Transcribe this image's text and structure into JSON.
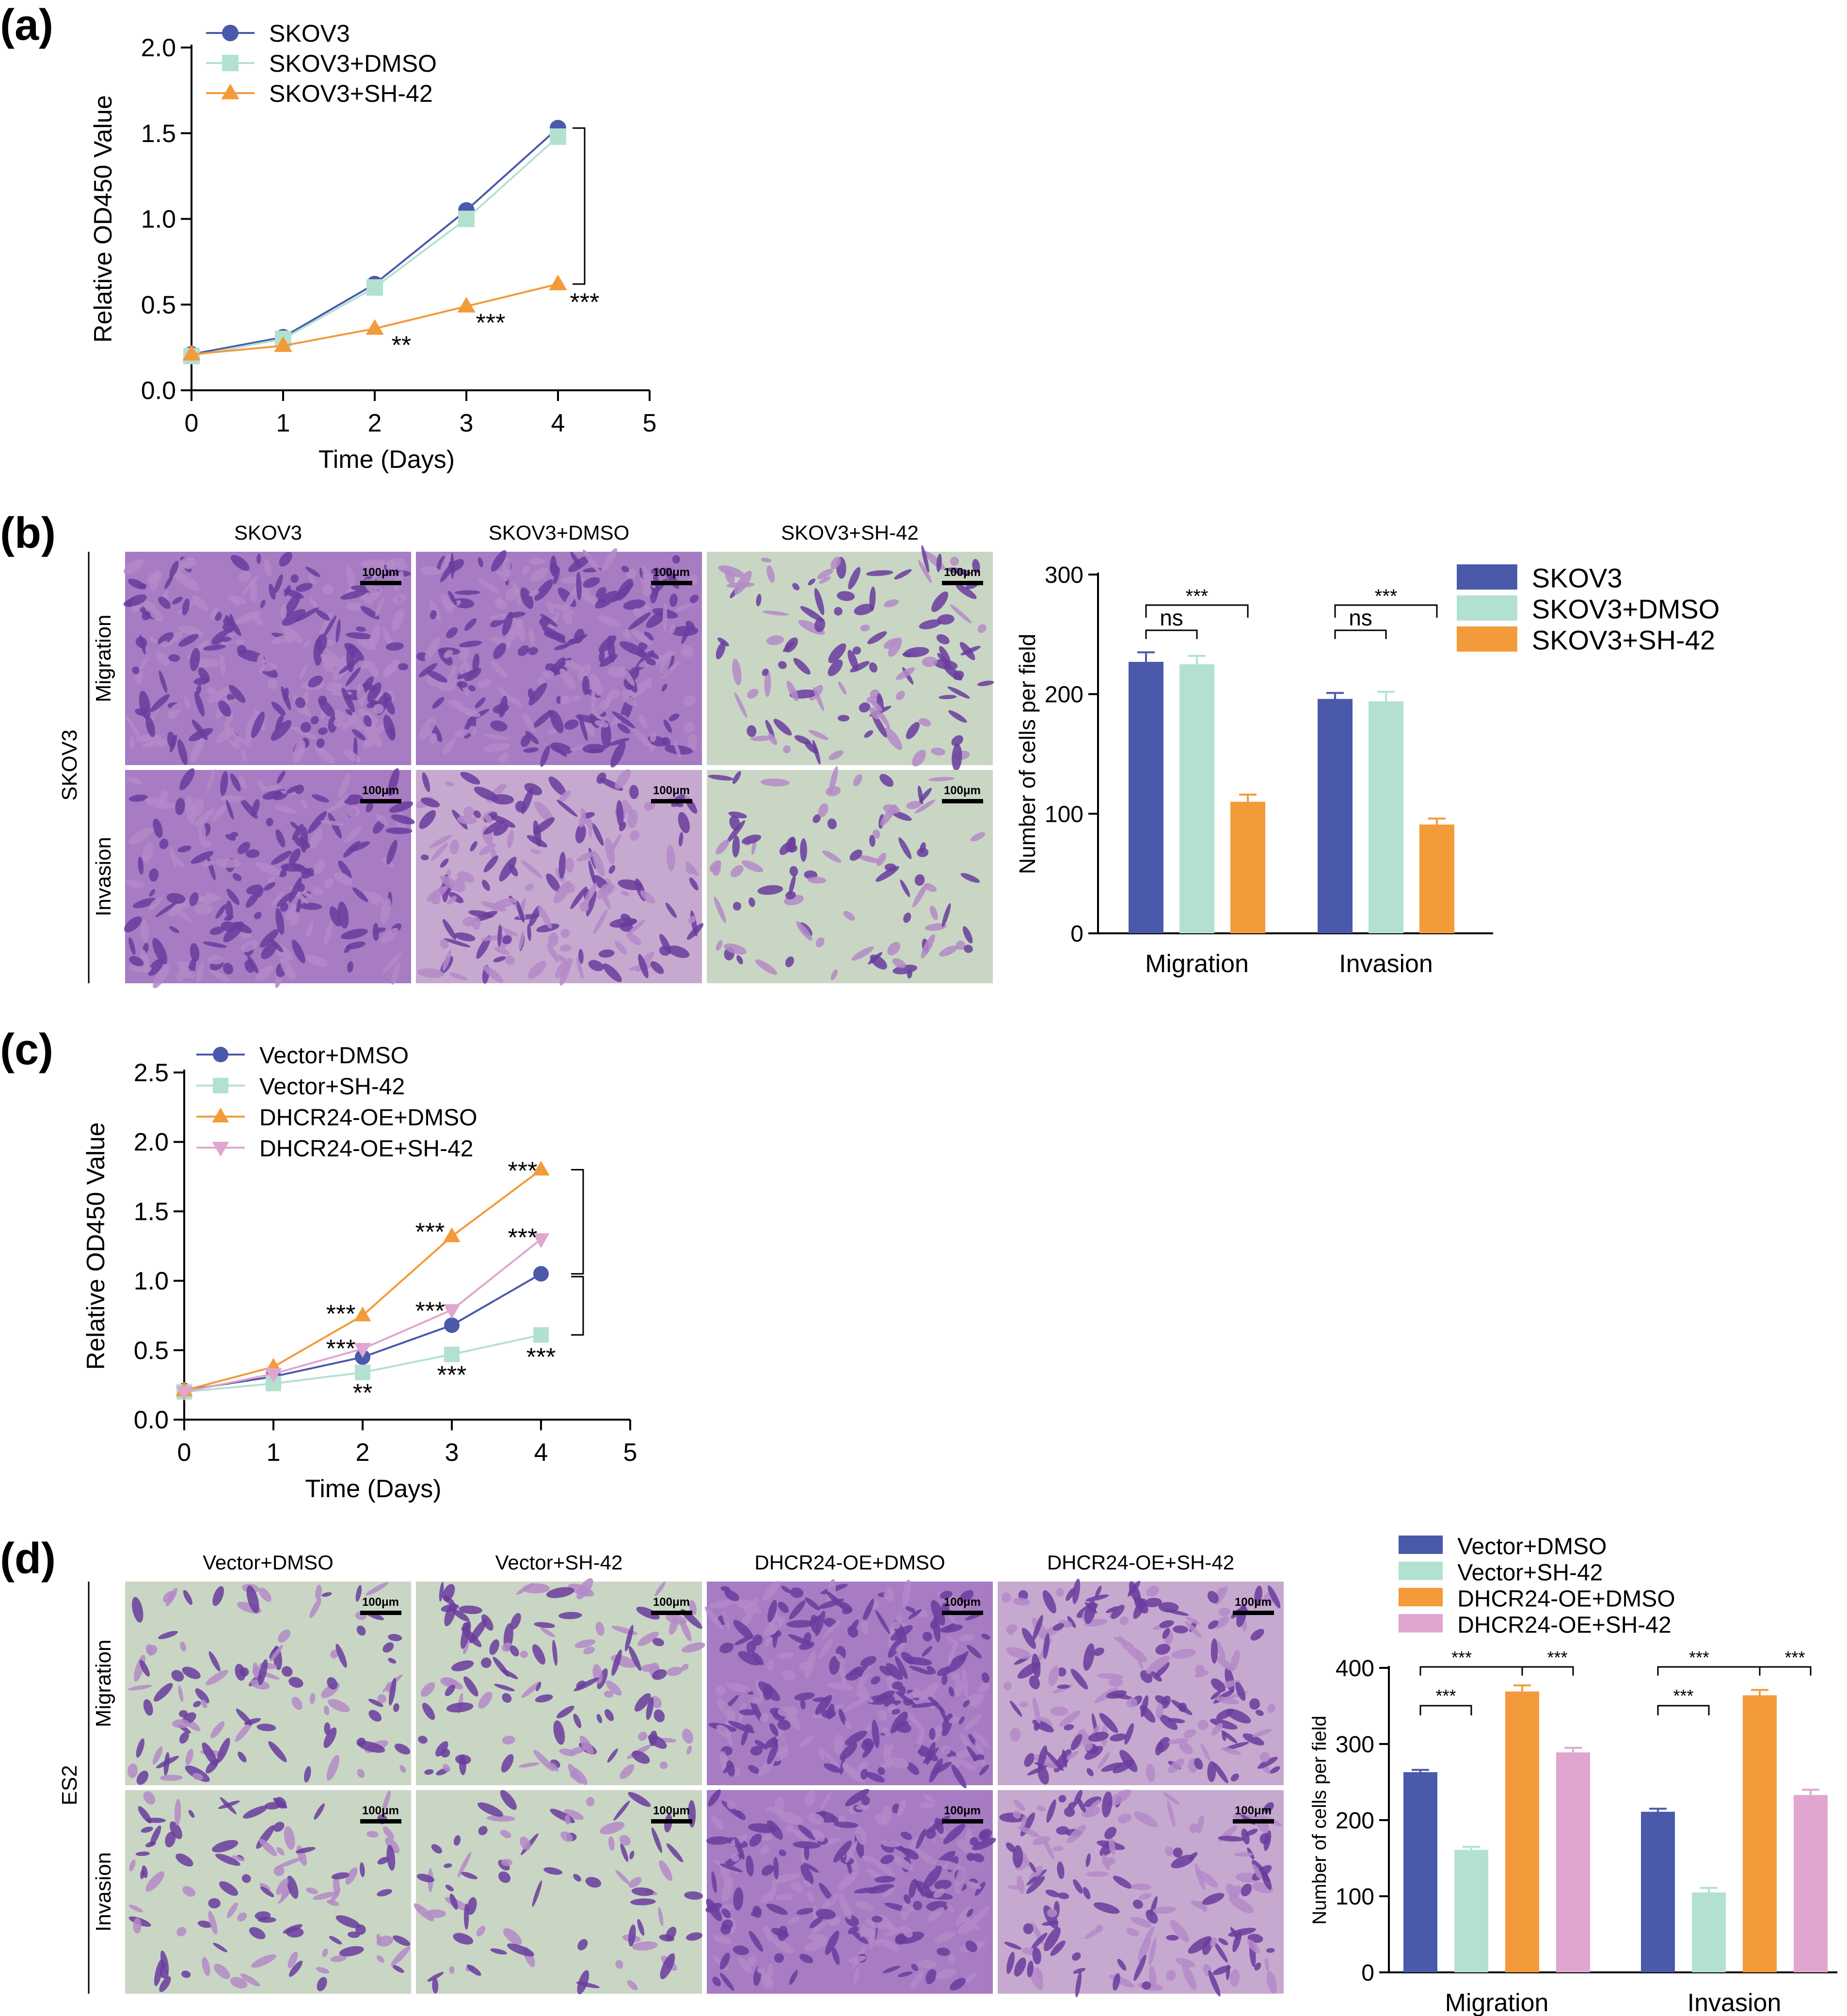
{
  "panels": {
    "a": "(a)",
    "b": "(b)",
    "c": "(c)",
    "d": "(d)"
  },
  "colors": {
    "blue": "#4A59AA",
    "mint": "#B3E1D0",
    "orange": "#F39A3A",
    "pink": "#E0A6CF",
    "stain_dark": "#6A3C9E",
    "stain_light": "#B489C8",
    "stain_bg_sparse": "#C9D6C4",
    "stain_bg_dense": "#A77CC3"
  },
  "micrograph_b": {
    "row_header": "SKOV3",
    "col_labels": [
      "SKOV3",
      "SKOV3+DMSO",
      "SKOV3+SH-42"
    ],
    "row_labels": [
      "Migration",
      "Invasion"
    ],
    "scale_bar": "100μm"
  },
  "micrograph_d": {
    "row_header": "ES2",
    "col_labels": [
      "Vector+DMSO",
      "Vector+SH-42",
      "DHCR24-OE+DMSO",
      "DHCR24-OE+SH-42"
    ],
    "row_labels": [
      "Migration",
      "Invasion"
    ],
    "scale_bar": "100μm"
  },
  "chart_data": [
    {
      "id": "a",
      "type": "line",
      "xlabel": "Time (Days)",
      "ylabel": "Relative OD450 Value",
      "xlim": [
        0,
        5
      ],
      "ylim": [
        0,
        2.0
      ],
      "xticks": [
        "0",
        "1",
        "2",
        "3",
        "4",
        "5"
      ],
      "yticks": [
        "0.0",
        "0.5",
        "1.0",
        "1.5",
        "2.0"
      ],
      "x": [
        0,
        1,
        2,
        3,
        4
      ],
      "series": [
        {
          "name": "SKOV3",
          "marker": "circle",
          "color": "#4A59AA",
          "values": [
            0.21,
            0.31,
            0.62,
            1.05,
            1.53
          ]
        },
        {
          "name": "SKOV3+DMSO",
          "marker": "square",
          "color": "#B3E1D0",
          "values": [
            0.2,
            0.3,
            0.6,
            1.0,
            1.48
          ]
        },
        {
          "name": "SKOV3+SH-42",
          "marker": "triangle-up",
          "color": "#F39A3A",
          "values": [
            0.21,
            0.26,
            0.36,
            0.49,
            0.62
          ]
        }
      ],
      "annotations": [
        {
          "text": "**",
          "x": 2,
          "y": 0.27
        },
        {
          "text": "***",
          "x": 3,
          "y": 0.4
        },
        {
          "text": "***",
          "x": 4,
          "y": 0.52
        }
      ],
      "legend": "top-left"
    },
    {
      "id": "b",
      "type": "bar",
      "ylabel": "Number of cells per field",
      "ylim": [
        0,
        300
      ],
      "yticks": [
        "0",
        "100",
        "200",
        "300"
      ],
      "categories": [
        "Migration",
        "Invasion"
      ],
      "series": [
        {
          "name": "SKOV3",
          "color": "#4A59AA",
          "values": [
            227,
            196
          ],
          "errors": [
            8,
            5
          ]
        },
        {
          "name": "SKOV3+DMSO",
          "color": "#B3E1D0",
          "values": [
            225,
            194
          ],
          "errors": [
            7,
            8
          ]
        },
        {
          "name": "SKOV3+SH-42",
          "color": "#F39A3A",
          "values": [
            110,
            91
          ],
          "errors": [
            6,
            5
          ]
        }
      ],
      "significance": [
        "ns",
        "***",
        "ns",
        "***"
      ],
      "legend": "top-right"
    },
    {
      "id": "c",
      "type": "line",
      "xlabel": "Time (Days)",
      "ylabel": "Relative OD450 Value",
      "xlim": [
        0,
        5
      ],
      "ylim": [
        0,
        2.5
      ],
      "xticks": [
        "0",
        "1",
        "2",
        "3",
        "4",
        "5"
      ],
      "yticks": [
        "0.0",
        "0.5",
        "1.0",
        "1.5",
        "2.0",
        "2.5"
      ],
      "x": [
        0,
        1,
        2,
        3,
        4
      ],
      "series": [
        {
          "name": "Vector+DMSO",
          "marker": "circle",
          "color": "#4A59AA",
          "values": [
            0.21,
            0.31,
            0.45,
            0.68,
            1.05
          ]
        },
        {
          "name": "Vector+SH-42",
          "marker": "square",
          "color": "#B3E1D0",
          "values": [
            0.2,
            0.26,
            0.34,
            0.47,
            0.61
          ]
        },
        {
          "name": "DHCR24-OE+DMSO",
          "marker": "triangle-up",
          "color": "#F39A3A",
          "values": [
            0.21,
            0.38,
            0.75,
            1.32,
            1.8
          ]
        },
        {
          "name": "DHCR24-OE+SH-42",
          "marker": "triangle-down",
          "color": "#E0A6CF",
          "values": [
            0.2,
            0.33,
            0.51,
            0.79,
            1.3
          ]
        }
      ],
      "annotations": [
        {
          "text": "***",
          "x": 2,
          "y": 0.77
        },
        {
          "text": "***",
          "x": 2,
          "y": 0.52
        },
        {
          "text": "**",
          "x": 2,
          "y": 0.2
        },
        {
          "text": "***",
          "x": 3,
          "y": 1.36
        },
        {
          "text": "***",
          "x": 3,
          "y": 0.79
        },
        {
          "text": "***",
          "x": 3,
          "y": 0.33
        },
        {
          "text": "***",
          "x": 4,
          "y": 1.8
        },
        {
          "text": "***",
          "x": 4,
          "y": 1.32
        },
        {
          "text": "***",
          "x": 4,
          "y": 0.46
        }
      ],
      "legend": "top-left"
    },
    {
      "id": "d",
      "type": "bar",
      "ylabel": "Number of cells per field",
      "ylim": [
        0,
        400
      ],
      "yticks": [
        "0",
        "100",
        "200",
        "300",
        "400"
      ],
      "categories": [
        "Migration",
        "Invasion"
      ],
      "series": [
        {
          "name": "Vector+DMSO",
          "color": "#4A59AA",
          "values": [
            263,
            211
          ],
          "errors": [
            3,
            4
          ]
        },
        {
          "name": "Vector+SH-42",
          "color": "#B3E1D0",
          "values": [
            161,
            105
          ],
          "errors": [
            4,
            6
          ]
        },
        {
          "name": "DHCR24-OE+DMSO",
          "color": "#F39A3A",
          "values": [
            369,
            364
          ],
          "errors": [
            8,
            7
          ]
        },
        {
          "name": "DHCR24-OE+SH-42",
          "color": "#E0A6CF",
          "values": [
            289,
            233
          ],
          "errors": [
            6,
            7
          ]
        }
      ],
      "significance": [
        "***",
        "***",
        "***"
      ],
      "legend": "top"
    }
  ]
}
